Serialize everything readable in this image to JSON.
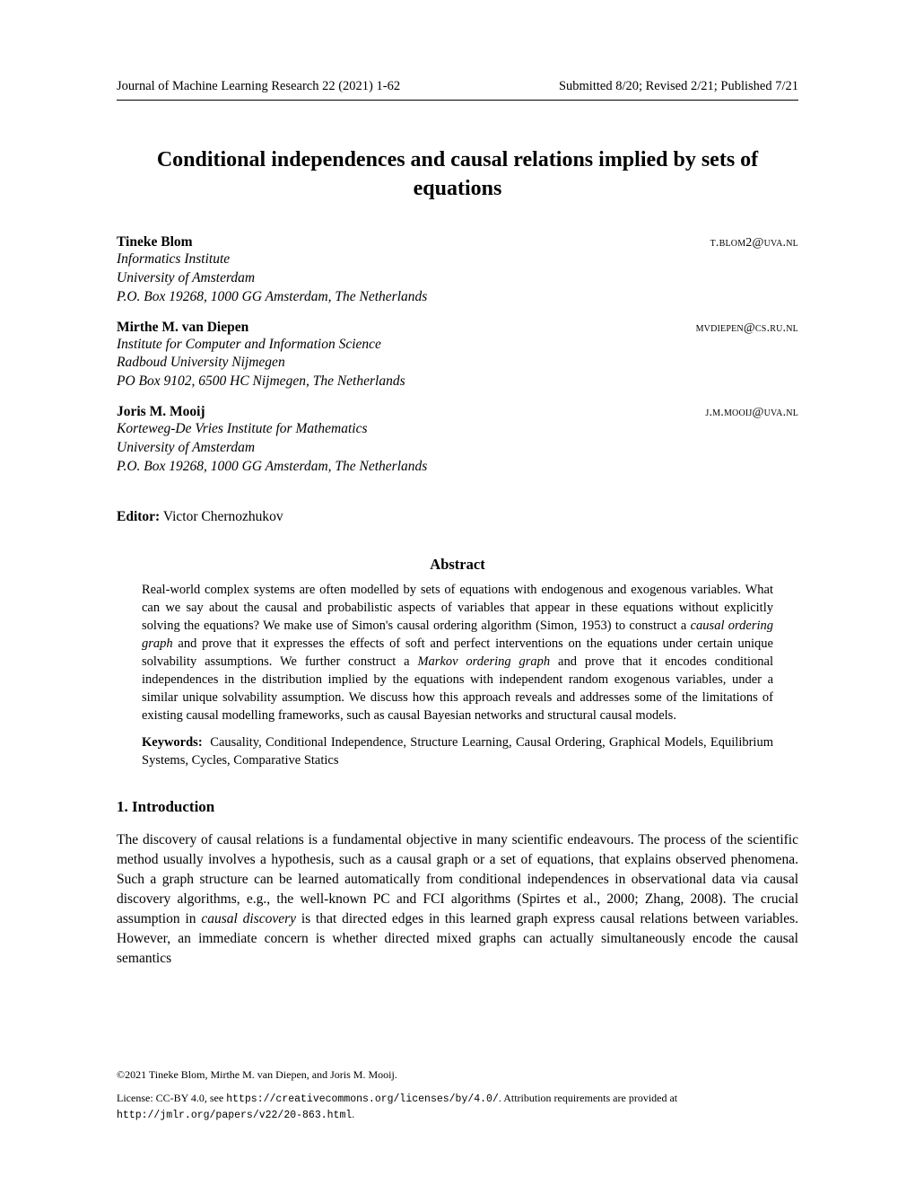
{
  "header": {
    "journal": "Journal of Machine Learning Research 22 (2021) 1-62",
    "dates": "Submitted 8/20; Revised 2/21; Published 7/21"
  },
  "title": "Conditional independences and causal relations implied by sets of equations",
  "authors": [
    {
      "name": "Tineke Blom",
      "email": "t.blom2@uva.nl",
      "affiliation": "Informatics Institute\nUniversity of Amsterdam\nP.O. Box 19268, 1000 GG Amsterdam, The Netherlands"
    },
    {
      "name": "Mirthe M. van Diepen",
      "email": "mvdiepen@cs.ru.nl",
      "affiliation": "Institute for Computer and Information Science\nRadboud University Nijmegen\nPO Box 9102, 6500 HC Nijmegen, The Netherlands"
    },
    {
      "name": "Joris M. Mooij",
      "email": "j.m.mooij@uva.nl",
      "affiliation": "Korteweg-De Vries Institute for Mathematics\nUniversity of Amsterdam\nP.O. Box 19268, 1000 GG Amsterdam, The Netherlands"
    }
  ],
  "editor": {
    "label": "Editor:",
    "name": "Victor Chernozhukov"
  },
  "abstract": {
    "heading": "Abstract",
    "body_html": "Real-world complex systems are often modelled by sets of equations with endogenous and exogenous variables. What can we say about the causal and probabilistic aspects of variables that appear in these equations without explicitly solving the equations? We make use of Simon's causal ordering algorithm (Simon, 1953) to construct a <span class=\"italic\">causal ordering graph</span> and prove that it expresses the effects of soft and perfect interventions on the equations under certain unique solvability assumptions. We further construct a <span class=\"italic\">Markov ordering graph</span> and prove that it encodes conditional independences in the distribution implied by the equations with independent random exogenous variables, under a similar unique solvability assumption. We discuss how this approach reveals and addresses some of the limitations of existing causal modelling frameworks, such as causal Bayesian networks and structural causal models."
  },
  "keywords": {
    "label": "Keywords:",
    "text": "Causality, Conditional Independence, Structure Learning, Causal Ordering, Graphical Models, Equilibrium Systems, Cycles, Comparative Statics"
  },
  "section": {
    "heading": "1. Introduction",
    "body_html": "The discovery of causal relations is a fundamental objective in many scientific endeavours. The process of the scientific method usually involves a hypothesis, such as a causal graph or a set of equations, that explains observed phenomena. Such a graph structure can be learned automatically from conditional independences in observational data via causal discovery algorithms, e.g., the well-known PC and FCI algorithms (Spirtes et al., 2000; Zhang, 2008). The crucial assumption in <span class=\"italic\">causal discovery</span> is that directed edges in this learned graph express causal relations between variables. However, an immediate concern is whether directed mixed graphs can actually simultaneously encode the causal semantics"
  },
  "footer": {
    "copyright": "©2021 Tineke Blom, Mirthe M. van Diepen, and Joris M. Mooij.",
    "license_prefix": "License: CC-BY 4.0, see ",
    "license_url": "https://creativecommons.org/licenses/by/4.0/",
    "license_mid": ". Attribution requirements are provided at ",
    "paper_url": "http://jmlr.org/papers/v22/20-863.html",
    "license_suffix": "."
  }
}
